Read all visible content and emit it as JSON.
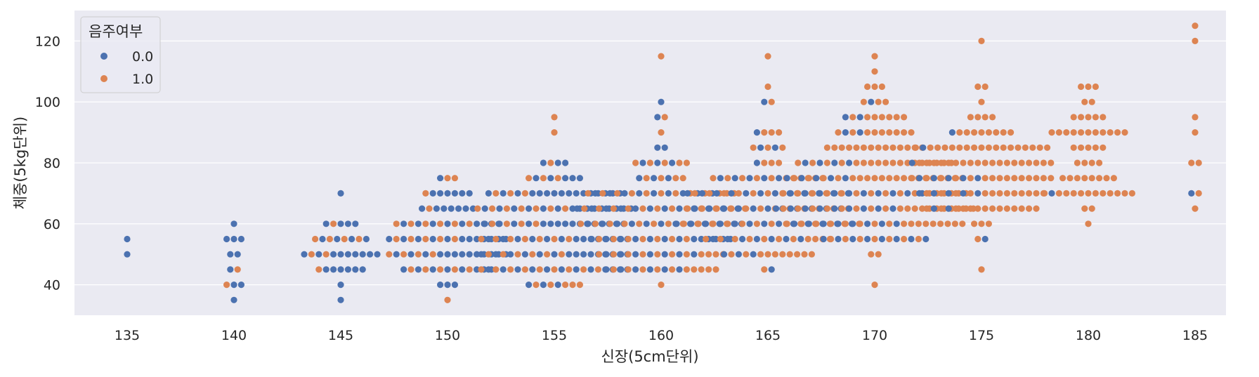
{
  "chart_data": {
    "type": "scatter",
    "style": "swarm",
    "xlabel": "신장(5cm단위)",
    "ylabel": "체중(5kg단위)",
    "x_categories": [
      "135",
      "140",
      "145",
      "150",
      "155",
      "160",
      "165",
      "170",
      "175",
      "180",
      "185"
    ],
    "ylim": [
      30,
      130
    ],
    "yticks": [
      "40",
      "60",
      "80",
      "100",
      "120"
    ],
    "grid": true,
    "background": "#eaeaf2",
    "legend": {
      "title": "음주여부",
      "placement": "top-left",
      "entries": [
        {
          "label": "0.0",
          "color": "#4c72b0"
        },
        {
          "label": "1.0",
          "color": "#dd8452"
        }
      ]
    },
    "series": [
      {
        "name": "0.0",
        "color": "#4c72b0",
        "groups": {
          "135": [
            [
              50,
              1
            ],
            [
              55,
              1
            ]
          ],
          "140": [
            [
              35,
              1
            ],
            [
              40,
              2
            ],
            [
              45,
              1
            ],
            [
              50,
              2
            ],
            [
              55,
              3
            ],
            [
              60,
              1
            ]
          ],
          "145": [
            [
              35,
              1
            ],
            [
              40,
              1
            ],
            [
              45,
              6
            ],
            [
              50,
              9
            ],
            [
              55,
              4
            ],
            [
              60,
              4
            ],
            [
              70,
              1
            ]
          ],
          "150": [
            [
              40,
              3
            ],
            [
              45,
              8
            ],
            [
              50,
              13
            ],
            [
              55,
              12
            ],
            [
              60,
              9
            ],
            [
              65,
              7
            ],
            [
              70,
              6
            ],
            [
              75,
              1
            ]
          ],
          "155": [
            [
              40,
              3
            ],
            [
              45,
              12
            ],
            [
              50,
              15
            ],
            [
              55,
              14
            ],
            [
              60,
              16
            ],
            [
              65,
              15
            ],
            [
              70,
              16
            ],
            [
              75,
              5
            ],
            [
              80,
              3
            ]
          ],
          "160": [
            [
              45,
              6
            ],
            [
              50,
              7
            ],
            [
              55,
              13
            ],
            [
              60,
              12
            ],
            [
              65,
              12
            ],
            [
              70,
              9
            ],
            [
              75,
              3
            ],
            [
              80,
              3
            ],
            [
              85,
              2
            ],
            [
              95,
              1
            ],
            [
              100,
              1
            ]
          ],
          "165": [
            [
              45,
              1
            ],
            [
              50,
              3
            ],
            [
              55,
              7
            ],
            [
              60,
              13
            ],
            [
              65,
              11
            ],
            [
              70,
              12
            ],
            [
              75,
              5
            ],
            [
              80,
              1
            ],
            [
              85,
              2
            ],
            [
              90,
              1
            ],
            [
              100,
              1
            ]
          ],
          "170": [
            [
              55,
              8
            ],
            [
              60,
              8
            ],
            [
              65,
              9
            ],
            [
              70,
              10
            ],
            [
              75,
              5
            ],
            [
              80,
              4
            ],
            [
              90,
              2
            ],
            [
              95,
              2
            ],
            [
              100,
              1
            ]
          ],
          "175": [
            [
              55,
              1
            ],
            [
              65,
              2
            ],
            [
              70,
              5
            ],
            [
              75,
              5
            ],
            [
              80,
              1
            ],
            [
              85,
              1
            ],
            [
              90,
              1
            ]
          ],
          "180": [
            [
              70,
              1
            ]
          ],
          "185": [
            [
              70,
              1
            ]
          ]
        }
      },
      {
        "name": "1.0",
        "color": "#dd8452",
        "groups": {
          "135": [],
          "140": [
            [
              40,
              1
            ],
            [
              45,
              1
            ]
          ],
          "145": [
            [
              45,
              1
            ],
            [
              50,
              2
            ],
            [
              55,
              4
            ],
            [
              60,
              1
            ]
          ],
          "150": [
            [
              35,
              1
            ],
            [
              45,
              5
            ],
            [
              50,
              4
            ],
            [
              55,
              5
            ],
            [
              60,
              6
            ],
            [
              65,
              1
            ],
            [
              70,
              1
            ],
            [
              75,
              2
            ]
          ],
          "155": [
            [
              40,
              5
            ],
            [
              45,
              9
            ],
            [
              50,
              6
            ],
            [
              55,
              7
            ],
            [
              60,
              4
            ],
            [
              65,
              7
            ],
            [
              70,
              3
            ],
            [
              75,
              3
            ],
            [
              80,
              1
            ],
            [
              90,
              1
            ],
            [
              95,
              1
            ]
          ],
          "160": [
            [
              40,
              1
            ],
            [
              45,
              10
            ],
            [
              50,
              11
            ],
            [
              55,
              7
            ],
            [
              60,
              11
            ],
            [
              65,
              12
            ],
            [
              70,
              12
            ],
            [
              75,
              4
            ],
            [
              80,
              5
            ],
            [
              90,
              1
            ],
            [
              95,
              1
            ],
            [
              115,
              1
            ]
          ],
          "165": [
            [
              45,
              1
            ],
            [
              50,
              10
            ],
            [
              55,
              11
            ],
            [
              60,
              13
            ],
            [
              65,
              12
            ],
            [
              70,
              11
            ],
            [
              75,
              11
            ],
            [
              80,
              3
            ],
            [
              85,
              3
            ],
            [
              90,
              3
            ],
            [
              100,
              1
            ],
            [
              105,
              1
            ],
            [
              115,
              1
            ]
          ],
          "170": [
            [
              40,
              1
            ],
            [
              50,
              2
            ],
            [
              55,
              7
            ],
            [
              60,
              17
            ],
            [
              65,
              19
            ],
            [
              70,
              16
            ],
            [
              75,
              20
            ],
            [
              80,
              18
            ],
            [
              85,
              14
            ],
            [
              90,
              9
            ],
            [
              95,
              7
            ],
            [
              100,
              3
            ],
            [
              105,
              3
            ],
            [
              110,
              1
            ],
            [
              115,
              1
            ]
          ],
          "175": [
            [
              45,
              1
            ],
            [
              55,
              1
            ],
            [
              60,
              3
            ],
            [
              65,
              14
            ],
            [
              70,
              13
            ],
            [
              75,
              15
            ],
            [
              80,
              19
            ],
            [
              85,
              18
            ],
            [
              90,
              8
            ],
            [
              95,
              4
            ],
            [
              100,
              1
            ],
            [
              105,
              2
            ],
            [
              120,
              1
            ]
          ],
          "180": [
            [
              60,
              1
            ],
            [
              65,
              2
            ],
            [
              70,
              12
            ],
            [
              75,
              8
            ],
            [
              80,
              4
            ],
            [
              85,
              5
            ],
            [
              90,
              11
            ],
            [
              95,
              5
            ],
            [
              100,
              2
            ],
            [
              105,
              3
            ]
          ],
          "185": [
            [
              65,
              1
            ],
            [
              70,
              1
            ],
            [
              80,
              2
            ],
            [
              90,
              1
            ],
            [
              95,
              1
            ],
            [
              120,
              1
            ],
            [
              125,
              1
            ]
          ]
        }
      }
    ]
  }
}
